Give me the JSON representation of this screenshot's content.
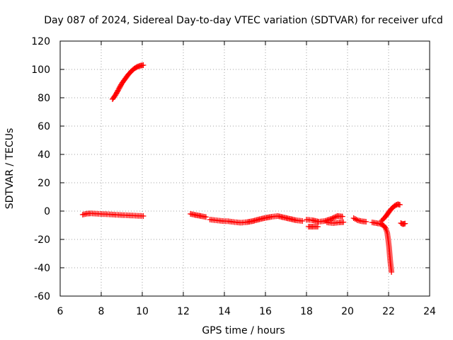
{
  "chart_data": {
    "type": "scatter",
    "title": "Day 087 of 2024, Sidereal Day-to-day VTEC variation (SDTVAR) for receiver ufcd",
    "xlabel": "GPS time / hours",
    "ylabel": "SDTVAR / TECUs",
    "xlim": [
      6,
      24
    ],
    "ylim": [
      -60,
      120
    ],
    "xticks": [
      6,
      8,
      10,
      12,
      14,
      16,
      18,
      20,
      22,
      24
    ],
    "yticks": [
      -60,
      -40,
      -20,
      0,
      20,
      40,
      60,
      80,
      100,
      120
    ],
    "grid": true,
    "marker": "+",
    "series": [
      {
        "name": "SDTVAR",
        "color": "#ff0000",
        "segments": [
          [
            [
              8.55,
              79
            ],
            [
              8.7,
              82
            ],
            [
              8.85,
              86
            ],
            [
              9.0,
              90
            ],
            [
              9.15,
              93
            ],
            [
              9.3,
              96
            ],
            [
              9.45,
              98.5
            ],
            [
              9.6,
              100.5
            ],
            [
              9.75,
              101.8
            ],
            [
              9.9,
              102.6
            ],
            [
              10.05,
              103
            ]
          ],
          [
            [
              7.1,
              -2.5
            ],
            [
              7.3,
              -1.8
            ],
            [
              7.5,
              -1.6
            ],
            [
              7.8,
              -1.9
            ],
            [
              8.1,
              -2.1
            ],
            [
              8.4,
              -2.3
            ],
            [
              8.7,
              -2.6
            ],
            [
              9.0,
              -2.8
            ],
            [
              9.3,
              -3.0
            ],
            [
              9.6,
              -3.2
            ],
            [
              9.9,
              -3.4
            ],
            [
              10.05,
              -3.5
            ]
          ],
          [
            [
              12.35,
              -2
            ],
            [
              12.6,
              -2.8
            ],
            [
              12.9,
              -3.6
            ],
            [
              13.1,
              -4.2
            ]
          ],
          [
            [
              13.3,
              -6
            ],
            [
              13.6,
              -6.5
            ],
            [
              13.9,
              -7
            ],
            [
              14.2,
              -7.2
            ],
            [
              14.5,
              -7.8
            ],
            [
              14.8,
              -8.2
            ],
            [
              15.1,
              -7.8
            ],
            [
              15.4,
              -7.0
            ],
            [
              15.7,
              -5.8
            ],
            [
              16.0,
              -4.8
            ],
            [
              16.3,
              -4.0
            ],
            [
              16.6,
              -3.5
            ],
            [
              16.9,
              -4.5
            ],
            [
              17.2,
              -5.5
            ],
            [
              17.5,
              -6.5
            ],
            [
              17.8,
              -7
            ]
          ],
          [
            [
              18.0,
              -6
            ],
            [
              18.3,
              -6.5
            ],
            [
              18.6,
              -7.5
            ],
            [
              18.9,
              -7
            ],
            [
              19.2,
              -5.5
            ],
            [
              19.5,
              -3.5
            ],
            [
              19.75,
              -3.8
            ]
          ],
          [
            [
              18.1,
              -11
            ],
            [
              18.35,
              -11
            ],
            [
              18.55,
              -11
            ]
          ],
          [
            [
              19.0,
              -8
            ],
            [
              19.3,
              -8.5
            ],
            [
              19.6,
              -8.0
            ],
            [
              19.8,
              -7.8
            ]
          ],
          [
            [
              20.3,
              -5
            ],
            [
              20.5,
              -6.5
            ],
            [
              20.7,
              -7.2
            ],
            [
              20.9,
              -7.5
            ]
          ],
          [
            [
              21.2,
              -8
            ],
            [
              21.4,
              -8.5
            ],
            [
              21.6,
              -9
            ],
            [
              21.75,
              -10
            ],
            [
              21.85,
              -12
            ],
            [
              21.93,
              -15
            ],
            [
              21.98,
              -20
            ],
            [
              22.02,
              -25
            ],
            [
              22.05,
              -30
            ],
            [
              22.08,
              -35
            ],
            [
              22.11,
              -39
            ],
            [
              22.14,
              -43
            ]
          ],
          [
            [
              21.65,
              -7
            ],
            [
              21.75,
              -5.5
            ],
            [
              21.85,
              -4
            ],
            [
              21.95,
              -2
            ],
            [
              22.05,
              0
            ],
            [
              22.15,
              1.8
            ],
            [
              22.25,
              3.2
            ],
            [
              22.35,
              4.2
            ],
            [
              22.45,
              4.8
            ],
            [
              22.55,
              4.5
            ]
          ],
          [
            [
              22.6,
              -8.5
            ],
            [
              22.7,
              -9.2
            ],
            [
              22.8,
              -8.8
            ]
          ]
        ]
      }
    ]
  }
}
